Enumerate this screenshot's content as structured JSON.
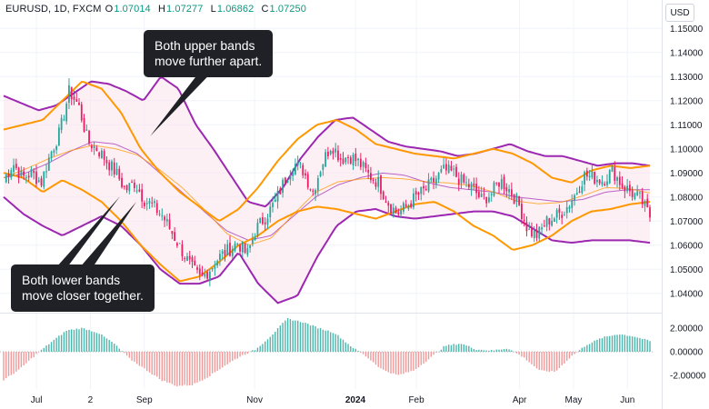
{
  "header": {
    "symbol": "EURUSD, 1D, FXCM",
    "open_label": "O",
    "open": "1.07014",
    "high_label": "H",
    "high": "1.07277",
    "low_label": "L",
    "low": "1.06862",
    "close_label": "C",
    "close": "1.07250"
  },
  "currency_button": "USD",
  "callouts": {
    "upper": [
      "Both upper bands",
      "move further apart."
    ],
    "lower": [
      "Both lower bands",
      "move closer together."
    ]
  },
  "colors": {
    "up_candle": "#26a69a",
    "down_candle": "#e91e63",
    "outer_bands": "#9c27b0",
    "inner_bands": "#ff9800",
    "band_fill": "#fce4ec",
    "hist_positive": "#4db6ac",
    "hist_negative": "#ef9a9a",
    "callout_bg": "#1f2126"
  },
  "chart_data": [
    {
      "type": "candlestick",
      "ylim": [
        1.035,
        1.155
      ],
      "y_ticks": [
        "1.15000",
        "1.14000",
        "1.13000",
        "1.12000",
        "1.11000",
        "1.10000",
        "1.09000",
        "1.08000",
        "1.07000",
        "1.06000",
        "1.05000",
        "1.04000"
      ],
      "x_ticks": [
        "Jul",
        "2",
        "Sep",
        "Nov",
        "2024",
        "Feb",
        "Apr",
        "May",
        "Jun"
      ],
      "x_ticks_bold": [
        false,
        false,
        false,
        false,
        true,
        false,
        false,
        false,
        false
      ],
      "close_anchors": [
        [
          1.087,
          1.094,
          1.088,
          1.09,
          1.086,
          1.098,
          1.107,
          1.124,
          1.118,
          1.103,
          1.1,
          1.095,
          1.09,
          1.083,
          1.086,
          1.079,
          1.076,
          1.072,
          1.065,
          1.058,
          1.051,
          1.046,
          1.05,
          1.055,
          1.058,
          1.061,
          1.056,
          1.067,
          1.072,
          1.078,
          1.087,
          1.094,
          1.091,
          1.082,
          1.094,
          1.102,
          1.096,
          1.097,
          1.094,
          1.089,
          1.086,
          1.078,
          1.073,
          1.076,
          1.08,
          1.083,
          1.087,
          1.091,
          1.09,
          1.086,
          1.084,
          1.079,
          1.081,
          1.087,
          1.083,
          1.077,
          1.066,
          1.064,
          1.07,
          1.072,
          1.075,
          1.081,
          1.089,
          1.088,
          1.087,
          1.091,
          1.085,
          1.082,
          1.079,
          1.072
        ]
      ],
      "outer_upper_anchors": [
        1.122,
        1.119,
        1.116,
        1.118,
        1.123,
        1.128,
        1.127,
        1.124,
        1.12,
        1.13,
        1.125,
        1.11,
        1.1,
        1.089,
        1.078,
        1.076,
        1.084,
        1.096,
        1.105,
        1.112,
        1.113,
        1.108,
        1.103,
        1.101,
        1.1,
        1.099,
        1.097,
        1.098,
        1.1,
        1.102,
        1.099,
        1.097,
        1.097,
        1.095,
        1.093,
        1.094,
        1.094,
        1.093
      ],
      "outer_lower_anchors": [
        1.08,
        1.073,
        1.068,
        1.064,
        1.068,
        1.072,
        1.068,
        1.06,
        1.05,
        1.044,
        1.044,
        1.047,
        1.057,
        1.044,
        1.036,
        1.039,
        1.055,
        1.068,
        1.074,
        1.075,
        1.072,
        1.071,
        1.072,
        1.073,
        1.074,
        1.074,
        1.072,
        1.067,
        1.062,
        1.061,
        1.062,
        1.062,
        1.062,
        1.061
      ],
      "inner_upper_anchors": [
        1.108,
        1.11,
        1.112,
        1.12,
        1.128,
        1.125,
        1.115,
        1.1,
        1.09,
        1.082,
        1.076,
        1.07,
        1.075,
        1.084,
        1.095,
        1.104,
        1.11,
        1.112,
        1.108,
        1.102,
        1.1,
        1.098,
        1.097,
        1.096,
        1.098,
        1.1,
        1.098,
        1.094,
        1.088,
        1.086,
        1.091,
        1.093,
        1.092,
        1.093
      ],
      "inner_lower_anchors": [
        1.09,
        1.088,
        1.082,
        1.087,
        1.083,
        1.078,
        1.07,
        1.06,
        1.052,
        1.045,
        1.047,
        1.053,
        1.06,
        1.064,
        1.07,
        1.074,
        1.076,
        1.075,
        1.073,
        1.071,
        1.074,
        1.077,
        1.078,
        1.074,
        1.068,
        1.064,
        1.058,
        1.06,
        1.064,
        1.07,
        1.074,
        1.075,
        1.077,
        1.078
      ],
      "basis_anchors": [
        1.088,
        1.09,
        1.094,
        1.099,
        1.103,
        1.102,
        1.098,
        1.09,
        1.082,
        1.074,
        1.066,
        1.062,
        1.064,
        1.072,
        1.08,
        1.085,
        1.088,
        1.09,
        1.089,
        1.086,
        1.084,
        1.083,
        1.082,
        1.08,
        1.079,
        1.078,
        1.079,
        1.082,
        1.083,
        1.083
      ]
    },
    {
      "type": "histogram",
      "ylim": [
        -3.0,
        3.0
      ],
      "y_ticks": [
        "2.00000",
        "0.00000",
        "-2.00000"
      ],
      "value_anchors": [
        -2.4,
        -1.5,
        -0.3,
        0.8,
        1.8,
        2.0,
        1.6,
        0.7,
        -0.6,
        -1.5,
        -2.4,
        -2.9,
        -2.8,
        -2.1,
        -1.2,
        -0.4,
        0.2,
        1.4,
        2.8,
        2.5,
        2.0,
        1.6,
        0.5,
        -0.4,
        -1.5,
        -2.0,
        -1.6,
        -0.6,
        0.5,
        0.7,
        0.2,
        0.1,
        0.3,
        -0.5,
        -1.6,
        -1.7,
        -0.4,
        0.6,
        1.2,
        1.5,
        1.3,
        0.9
      ]
    }
  ]
}
